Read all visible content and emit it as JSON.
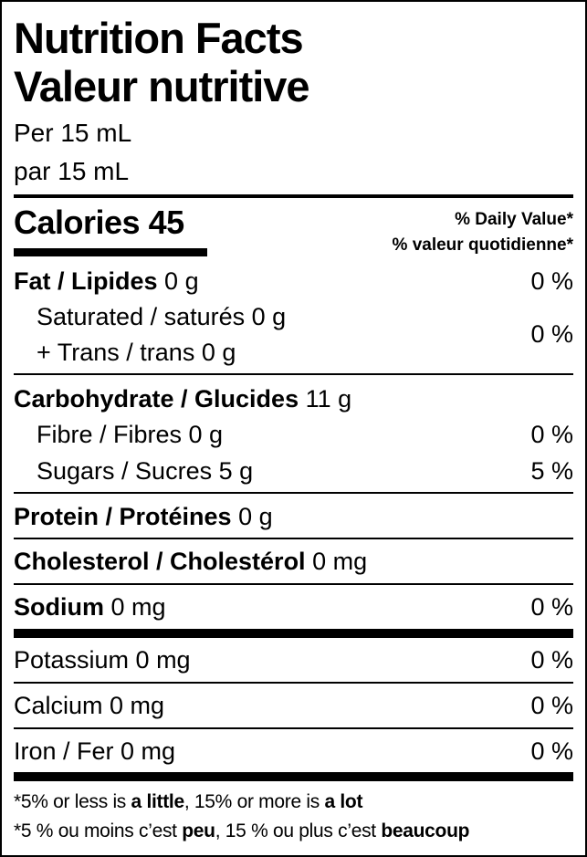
{
  "title_en": "Nutrition Facts",
  "title_fr": "Valeur nutritive",
  "serving_en": "Per 15 mL",
  "serving_fr": "par 15 mL",
  "calories_label": "Calories",
  "calories_value": "45",
  "dv_en": "% Daily Value*",
  "dv_fr": "% valeur quotidienne*",
  "nutrients": {
    "fat": {
      "label": "Fat / Lipides",
      "amount": "0 g",
      "dv": "0 %"
    },
    "saturated": {
      "label": "Saturated / saturés 0 g"
    },
    "trans": {
      "label": "+ Trans / trans 0 g"
    },
    "sat_trans_dv": "0 %",
    "carb": {
      "label": "Carbohydrate / Glucides",
      "amount": "11 g"
    },
    "fibre": {
      "label": "Fibre / Fibres 0 g",
      "dv": "0 %"
    },
    "sugars": {
      "label": "Sugars / Sucres 5 g",
      "dv": "5 %"
    },
    "protein": {
      "label": "Protein / Protéines",
      "amount": "0 g"
    },
    "cholesterol": {
      "label": "Cholesterol / Cholestérol",
      "amount": "0 mg"
    },
    "sodium": {
      "label": "Sodium",
      "amount": "0 mg",
      "dv": "0 %"
    },
    "potassium": {
      "label": "Potassium 0 mg",
      "dv": "0 %"
    },
    "calcium": {
      "label": "Calcium 0 mg",
      "dv": "0 %"
    },
    "iron": {
      "label": "Iron / Fer 0 mg",
      "dv": "0 %"
    }
  },
  "footnote_en": {
    "a": "*5% or less is ",
    "b": "a little",
    "c": ", 15% or more is ",
    "d": "a lot"
  },
  "footnote_fr": {
    "a": "*5 % ou moins c’est ",
    "b": "peu",
    "c": ", 15 % ou plus c’est ",
    "d": "beaucoup"
  }
}
